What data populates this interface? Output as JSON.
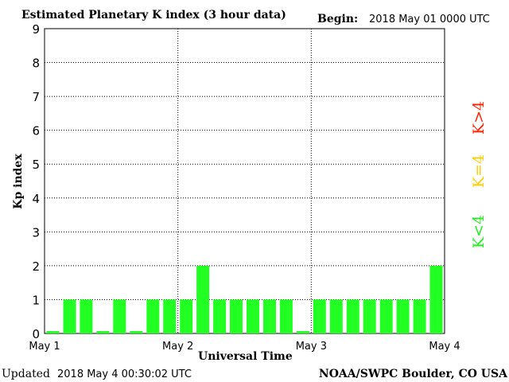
{
  "header": {
    "title": "Estimated Planetary K index (3 hour data)",
    "begin_label": "Begin:",
    "begin_value": "2018 May 01 0000 UTC"
  },
  "footer": {
    "updated_label": "Updated",
    "updated_value": "2018 May  4 00:30:02 UTC",
    "source": "NOAA/SWPC Boulder, CO USA"
  },
  "legend": {
    "high": {
      "text": "K>4",
      "color": "#ff2200"
    },
    "equal": {
      "text": "K=4",
      "color": "#ffcc00"
    },
    "low": {
      "text": "K<4",
      "color": "#22ee22"
    }
  },
  "chart_data": {
    "type": "bar",
    "title": "Estimated Planetary K index (3 hour data)",
    "xlabel": "Universal Time",
    "ylabel": "Kp index",
    "ylim": [
      0,
      9
    ],
    "yticks": [
      "0",
      "1",
      "2",
      "3",
      "4",
      "5",
      "6",
      "7",
      "8",
      "9"
    ],
    "xticks": [
      "May 1",
      "May 2",
      "May 3",
      "May 4"
    ],
    "interval_hours": 3,
    "values": [
      0,
      1,
      1,
      0,
      1,
      0,
      1,
      1,
      1,
      2,
      1,
      1,
      1,
      1,
      1,
      0,
      1,
      1,
      1,
      1,
      1,
      1,
      1,
      2
    ],
    "bar_color": "#22ff22",
    "grid": true
  }
}
